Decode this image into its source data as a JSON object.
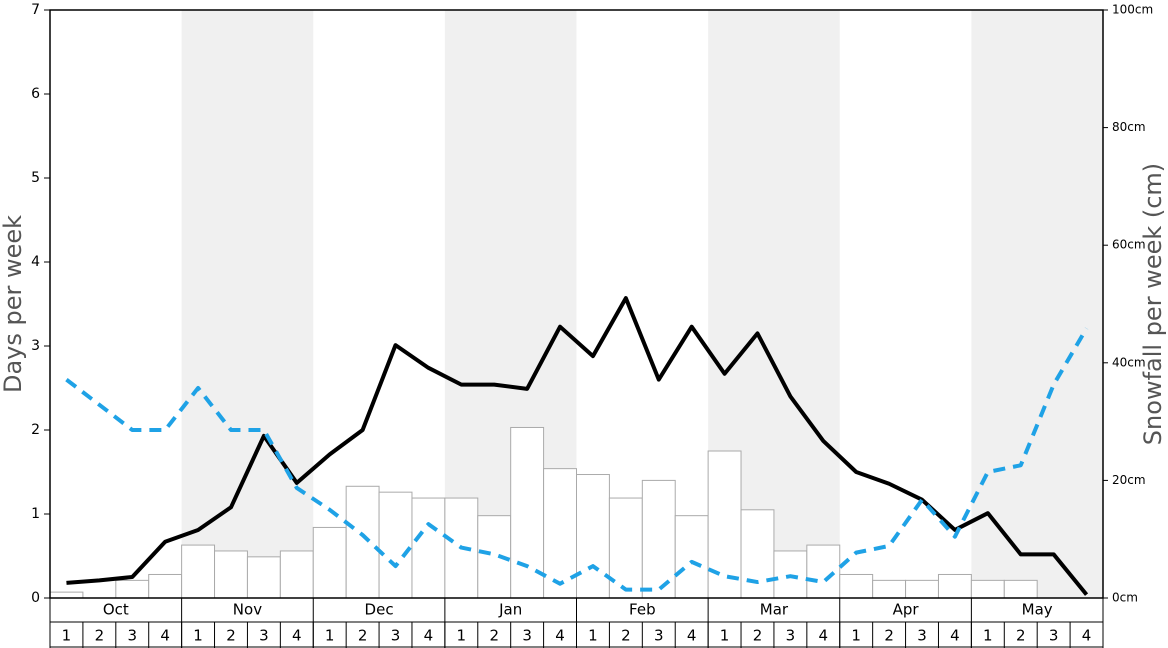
{
  "chart_data": {
    "type": "bar-line",
    "y_label": "Days per week",
    "y2_label": "Snowfall per week (cm)",
    "months": [
      "Oct",
      "Nov",
      "Dec",
      "Jan",
      "Feb",
      "Mar",
      "Apr",
      "May"
    ],
    "categories": [
      "1",
      "2",
      "3",
      "4",
      "1",
      "2",
      "3",
      "4",
      "1",
      "2",
      "3",
      "4",
      "1",
      "2",
      "3",
      "4",
      "1",
      "2",
      "3",
      "4",
      "1",
      "2",
      "3",
      "4",
      "1",
      "2",
      "3",
      "4",
      "1",
      "2",
      "3",
      "4"
    ],
    "ylim": [
      0,
      7
    ],
    "yticks": [
      0,
      1,
      2,
      3,
      4,
      5,
      6,
      7
    ],
    "y2lim": [
      0,
      100
    ],
    "y2ticks": [
      {
        "value": 0,
        "label": "0cm"
      },
      {
        "value": 20,
        "label": "20cm"
      },
      {
        "value": 40,
        "label": "40cm"
      },
      {
        "value": 60,
        "label": "60cm"
      },
      {
        "value": 80,
        "label": "80cm"
      },
      {
        "value": 100,
        "label": "100cm"
      }
    ],
    "series": [
      {
        "type": "bar",
        "axis": "y2",
        "color": "#ffffff",
        "values": [
          1,
          0,
          3,
          4,
          9,
          8,
          7,
          8,
          12,
          19,
          18,
          17,
          17,
          14,
          29,
          22,
          21,
          17,
          20,
          14,
          25,
          15,
          8,
          9,
          4,
          3,
          3,
          4,
          3,
          3,
          0,
          0
        ]
      },
      {
        "type": "line",
        "color": "#000000",
        "values": [
          0.18,
          0.21,
          0.25,
          0.67,
          0.81,
          1.08,
          1.93,
          1.37,
          1.71,
          2.0,
          3.01,
          2.74,
          2.54,
          2.54,
          2.49,
          3.23,
          2.88,
          3.57,
          2.6,
          3.23,
          2.67,
          3.15,
          2.4,
          1.87,
          1.5,
          1.36,
          1.17,
          0.81,
          1.01,
          0.52,
          0.52,
          0.04
        ]
      },
      {
        "type": "line",
        "dashed": true,
        "color": "#1fa2e6",
        "values": [
          2.6,
          2.3,
          2.0,
          2.0,
          2.5,
          2.0,
          2.0,
          1.31,
          1.05,
          0.75,
          0.38,
          0.88,
          0.6,
          0.52,
          0.38,
          0.17,
          0.38,
          0.1,
          0.1,
          0.43,
          0.26,
          0.19,
          0.26,
          0.19,
          0.54,
          0.62,
          1.17,
          0.73,
          1.5,
          1.58,
          2.54,
          3.21
        ]
      }
    ]
  }
}
